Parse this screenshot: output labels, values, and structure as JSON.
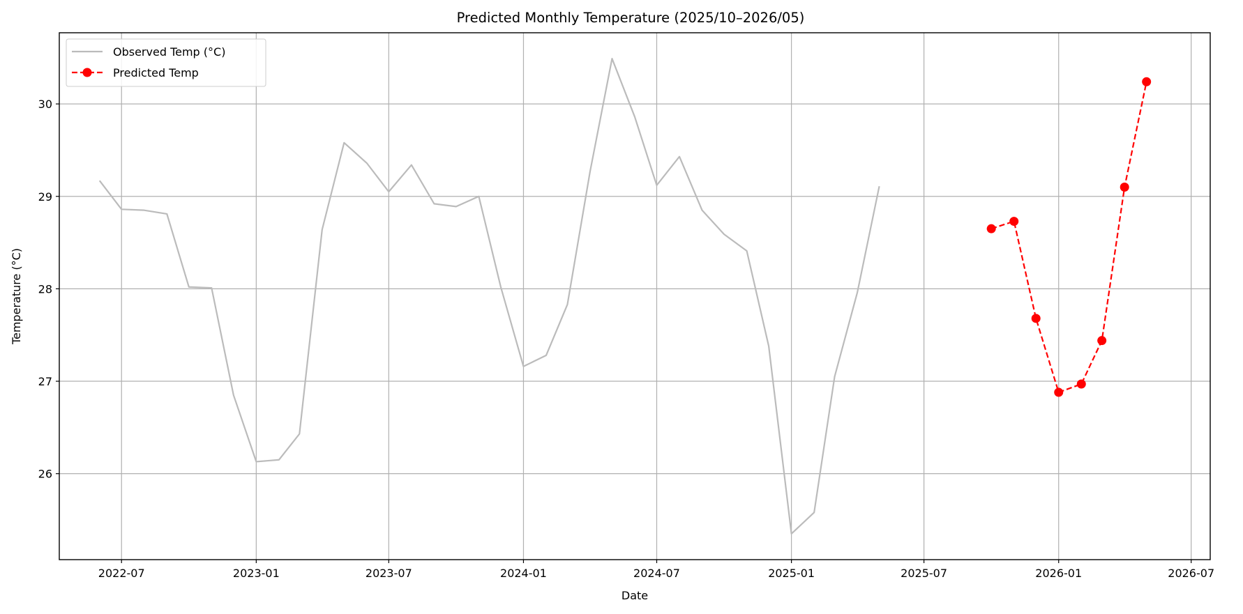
{
  "chart_data": {
    "type": "line",
    "title": "Predicted Monthly Temperature (2025/10–2026/05)",
    "xlabel": "Date",
    "ylabel": "Temperature (°C)",
    "xlim": [
      "2022-04-07",
      "2026-07-27"
    ],
    "ylim": [
      25.07,
      30.77
    ],
    "x_ticks": [
      "2022-07-01",
      "2023-01-01",
      "2023-07-01",
      "2024-01-01",
      "2024-07-01",
      "2025-01-01",
      "2025-07-01",
      "2026-01-01",
      "2026-07-01"
    ],
    "x_tick_labels": [
      "2022-07",
      "2023-01",
      "2023-07",
      "2024-01",
      "2024-07",
      "2025-01",
      "2025-07",
      "2026-01",
      "2026-07"
    ],
    "y_ticks": [
      26,
      27,
      28,
      29,
      30
    ],
    "y_tick_labels": [
      "26",
      "27",
      "28",
      "29",
      "30"
    ],
    "grid": true,
    "legend_position": "top-left",
    "series": [
      {
        "name": "Observed Temp (°C)",
        "color": "#bbbbbb",
        "style": "solid",
        "marker": "none",
        "x": [
          "2022-06-01",
          "2022-07-01",
          "2022-08-01",
          "2022-09-01",
          "2022-10-01",
          "2022-11-01",
          "2022-12-01",
          "2023-01-01",
          "2023-02-01",
          "2023-03-01",
          "2023-04-01",
          "2023-05-01",
          "2023-06-01",
          "2023-07-01",
          "2023-08-01",
          "2023-09-01",
          "2023-10-01",
          "2023-11-01",
          "2023-12-01",
          "2024-01-01",
          "2024-02-01",
          "2024-03-01",
          "2024-04-01",
          "2024-05-01",
          "2024-06-01",
          "2024-07-01",
          "2024-08-01",
          "2024-09-01",
          "2024-10-01",
          "2024-11-01",
          "2024-12-01",
          "2025-01-01",
          "2025-02-01",
          "2025-03-01",
          "2025-04-01",
          "2025-05-01"
        ],
        "y": [
          29.17,
          28.86,
          28.85,
          28.81,
          28.02,
          28.01,
          26.85,
          26.13,
          26.15,
          26.43,
          28.64,
          29.58,
          29.36,
          29.05,
          29.34,
          28.92,
          28.89,
          29.0,
          28.02,
          27.16,
          27.28,
          27.83,
          29.27,
          30.49,
          29.86,
          29.12,
          29.43,
          28.85,
          28.59,
          28.41,
          27.38,
          25.35,
          25.58,
          27.05,
          27.96,
          29.11
        ]
      },
      {
        "name": "Predicted Temp",
        "color": "#ff0000",
        "style": "dashed",
        "marker": "circle",
        "x": [
          "2025-10-01",
          "2025-11-01",
          "2025-12-01",
          "2026-01-01",
          "2026-02-01",
          "2026-03-01",
          "2026-04-01",
          "2026-05-01"
        ],
        "y": [
          28.65,
          28.73,
          27.68,
          26.88,
          26.97,
          27.44,
          29.1,
          30.24
        ]
      }
    ]
  }
}
